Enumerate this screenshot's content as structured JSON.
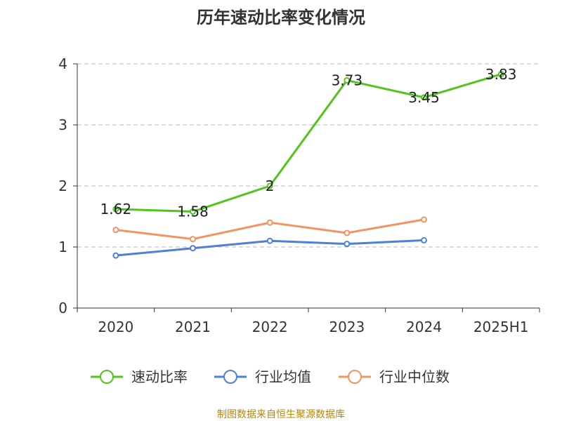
{
  "chart_data": {
    "type": "line",
    "title": "历年速动比率变化情况",
    "categories": [
      "2020",
      "2021",
      "2022",
      "2023",
      "2024",
      "2025H1"
    ],
    "ylim": [
      0,
      4
    ],
    "yticks": [
      "0",
      "1",
      "2",
      "3",
      "4"
    ],
    "grid": true,
    "legend_position": "bottom",
    "series": [
      {
        "name": "速动比率",
        "color": "#52c41a",
        "values": [
          1.62,
          1.58,
          2,
          3.73,
          3.45,
          3.83
        ],
        "labels": [
          "1.62",
          "1.58",
          "2",
          "3.73",
          "3.45",
          "3.83"
        ],
        "show_labels": true
      },
      {
        "name": "行业均值",
        "color": "#4f7fdc",
        "values": [
          0.86,
          0.98,
          1.1,
          1.05,
          1.11,
          null
        ],
        "show_labels": false
      },
      {
        "name": "行业中位数",
        "color": "#f59360",
        "values": [
          1.28,
          1.13,
          1.4,
          1.23,
          1.45,
          null
        ],
        "show_labels": false
      }
    ]
  },
  "source_text": "制图数据来自恒生聚源数据库"
}
